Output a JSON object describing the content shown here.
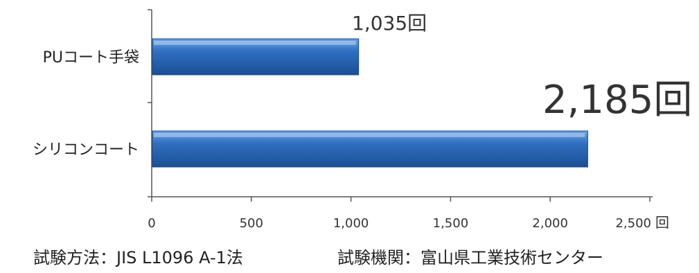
{
  "chart_data": {
    "type": "bar",
    "orientation": "horizontal",
    "categories": [
      "PUコート手袋",
      "シリコンコート"
    ],
    "values": [
      1035,
      2185
    ],
    "data_labels": [
      "1,035回",
      "2,185回"
    ],
    "xlim": [
      0,
      2500
    ],
    "x_ticks": [
      0,
      500,
      1000,
      1500,
      2000,
      2500
    ],
    "x_tick_labels": [
      "0",
      "500",
      "1,000",
      "1,500",
      "2,000",
      "2,500"
    ],
    "x_unit": "回",
    "grid": false,
    "bar_color": "#2f6fc0"
  },
  "footnote": {
    "method": "試験方法：JIS L1096 A-1法",
    "agency": "試験機関：富山県工業技術センター"
  }
}
